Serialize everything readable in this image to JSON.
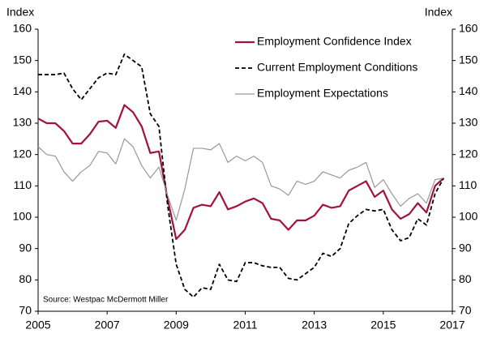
{
  "chart_data": {
    "type": "line",
    "y_label": "Index",
    "y2_label": "Index",
    "annotation": "Source: Westpac McDermott Miller",
    "x": [
      2005,
      2005.25,
      2005.5,
      2005.75,
      2006,
      2006.25,
      2006.5,
      2006.75,
      2007,
      2007.25,
      2007.5,
      2007.75,
      2008,
      2008.25,
      2008.5,
      2008.75,
      2009,
      2009.25,
      2009.5,
      2009.75,
      2010,
      2010.25,
      2010.5,
      2010.75,
      2011,
      2011.25,
      2011.5,
      2011.75,
      2012,
      2012.25,
      2012.5,
      2012.75,
      2013,
      2013.25,
      2013.5,
      2013.75,
      2014,
      2014.25,
      2014.5,
      2014.75,
      2015,
      2015.25,
      2015.5,
      2015.75,
      2016,
      2016.25,
      2016.5,
      2016.75
    ],
    "series": [
      {
        "name": "Employment Confidence Index",
        "color": "#a0133b",
        "dash": false,
        "width": 2.2,
        "values": [
          131.5,
          130,
          130,
          127.5,
          123.5,
          123.5,
          126.5,
          130.5,
          130.8,
          128.5,
          135.8,
          133.5,
          129,
          120.5,
          121,
          106,
          93,
          96,
          103,
          104,
          103.5,
          108,
          102.5,
          103.5,
          105,
          106,
          104.5,
          99.5,
          99,
          96,
          99,
          99,
          100.5,
          104,
          103,
          103.5,
          108.5,
          110,
          111.5,
          106.5,
          108.5,
          102.5,
          99.5,
          101,
          104.5,
          101.5,
          110,
          112.5
        ]
      },
      {
        "name": "Current Employment Conditions",
        "color": "#000000",
        "dash": true,
        "width": 1.8,
        "values": [
          145.5,
          145.5,
          145.5,
          146,
          141,
          137.5,
          141,
          144.5,
          146,
          145.5,
          152,
          150,
          148,
          133,
          129,
          104,
          85,
          77,
          74.5,
          77.5,
          77,
          85,
          80,
          79.5,
          85.5,
          85.5,
          84.5,
          84,
          84,
          80.5,
          80,
          82,
          84,
          88.5,
          87.5,
          90,
          98,
          100.5,
          102.5,
          102,
          102.5,
          96,
          92.5,
          93.5,
          99.5,
          97.5,
          107.5,
          112.5
        ]
      },
      {
        "name": "Employment Expectations",
        "color": "#999999",
        "dash": false,
        "width": 1.2,
        "values": [
          122.5,
          120,
          119.5,
          114.5,
          111.5,
          114.5,
          116.5,
          121,
          120.5,
          117,
          125,
          122.5,
          116.5,
          112.5,
          116,
          107,
          99,
          109,
          122,
          122,
          121.5,
          123.5,
          117.5,
          119.5,
          118,
          119.5,
          117.5,
          110,
          109,
          107,
          111.5,
          110.5,
          111.5,
          114.5,
          113.5,
          112.5,
          115,
          116,
          117.5,
          109.5,
          112,
          107.5,
          103.5,
          106,
          107.5,
          104.5,
          112,
          112.5
        ]
      }
    ],
    "xlim": [
      2005,
      2017
    ],
    "xticks": [
      2005,
      2007,
      2009,
      2011,
      2013,
      2015,
      2017
    ],
    "ylim": [
      70,
      160
    ],
    "yticks": [
      70,
      80,
      90,
      100,
      110,
      120,
      130,
      140,
      150,
      160
    ],
    "y2lim": [
      70,
      160
    ],
    "y2ticks": [
      70,
      80,
      90,
      100,
      110,
      120,
      130,
      140,
      150,
      160
    ],
    "legend": "upper right"
  }
}
